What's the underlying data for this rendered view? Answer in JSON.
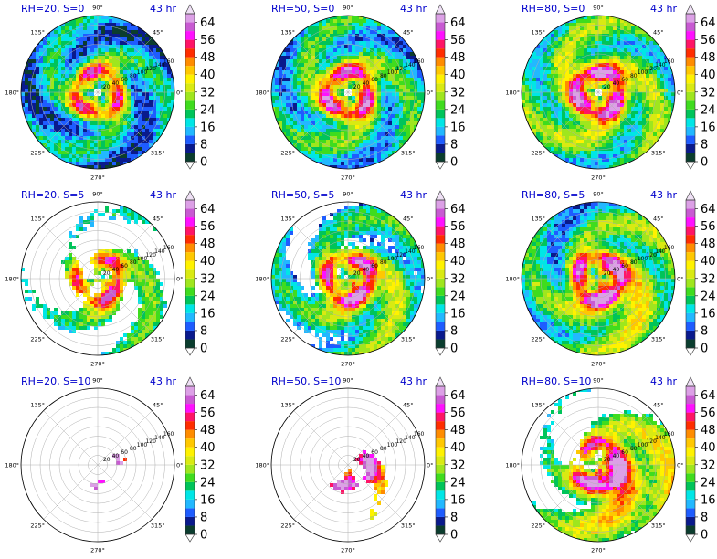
{
  "figure": {
    "time_label": "43 hr"
  },
  "chart_data": {
    "type": "heatmap",
    "projection": "polar",
    "angle_tick_labels": [
      "0°",
      "45°",
      "90°",
      "135°",
      "180°",
      "225°",
      "270°",
      "315°"
    ],
    "radial_tick_labels": [
      "20",
      "40",
      "60",
      "80",
      "100",
      "120",
      "140",
      "160"
    ],
    "colorbar": {
      "ticks": [
        0,
        8,
        16,
        24,
        32,
        40,
        48,
        56,
        64
      ],
      "levels": [
        0,
        4,
        8,
        12,
        16,
        20,
        24,
        28,
        32,
        36,
        40,
        44,
        48,
        52,
        56,
        60,
        64,
        68
      ],
      "colors": [
        "#0b3d2e",
        "#0a1a8c",
        "#1e5cff",
        "#22b8ff",
        "#00e6e6",
        "#00c45a",
        "#3fdc1e",
        "#9fe61e",
        "#d9ea12",
        "#fff200",
        "#ffc800",
        "#ff8c00",
        "#ff2d00",
        "#ff1466",
        "#ff10ff",
        "#c85ad2",
        "#dca0e6"
      ],
      "extend": "both"
    },
    "panels": [
      {
        "title": "RH=20, S=0",
        "rh": 20,
        "s": 0,
        "fill": 0.93,
        "rmax": 160
      },
      {
        "title": "RH=50, S=0",
        "rh": 50,
        "s": 0,
        "fill": 0.98,
        "rmax": 160
      },
      {
        "title": "RH=80, S=0",
        "rh": 80,
        "s": 0,
        "fill": 0.96,
        "rmax": 160
      },
      {
        "title": "RH=20, S=5",
        "rh": 20,
        "s": 5,
        "fill": 0.55,
        "rmax": 160
      },
      {
        "title": "RH=50, S=5",
        "rh": 50,
        "s": 5,
        "fill": 0.7,
        "rmax": 160
      },
      {
        "title": "RH=80, S=5",
        "rh": 80,
        "s": 5,
        "fill": 0.88,
        "rmax": 160
      },
      {
        "title": "RH=20, S=10",
        "rh": 20,
        "s": 10,
        "fill": 0.25,
        "rmax": 160
      },
      {
        "title": "RH=50, S=10",
        "rh": 50,
        "s": 10,
        "fill": 0.38,
        "rmax": 160
      },
      {
        "title": "RH=80, S=10",
        "rh": 80,
        "s": 10,
        "fill": 0.7,
        "rmax": 160
      }
    ]
  }
}
